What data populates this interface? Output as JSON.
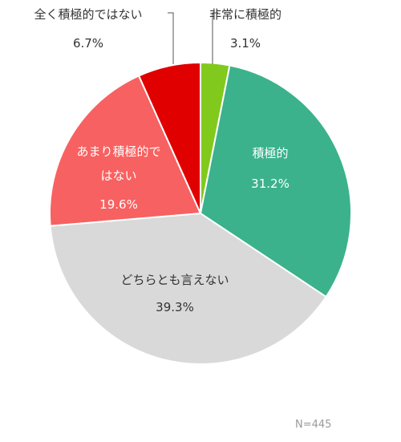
{
  "chart_data": {
    "type": "pie",
    "start_angle_deg": 0,
    "direction": "clockwise",
    "slices": [
      {
        "label": "非常に積極的",
        "value": 3.1,
        "value_text": "3.1%",
        "color": "#82c91e"
      },
      {
        "label": "積極的",
        "value": 31.2,
        "value_text": "31.2%",
        "color": "#3bb28c"
      },
      {
        "label": "どちらとも言えない",
        "value": 39.3,
        "value_text": "39.3%",
        "color": "#d9d9d9"
      },
      {
        "label": "あまり積極的ではない",
        "label_lines": [
          "あまり積極的で",
          "はない"
        ],
        "value": 19.6,
        "value_text": "19.6%",
        "color": "#f86161"
      },
      {
        "label": "全く積極的ではない",
        "value": 6.7,
        "value_text": "6.7%",
        "color": "#e00000"
      }
    ],
    "note": "N=445"
  }
}
